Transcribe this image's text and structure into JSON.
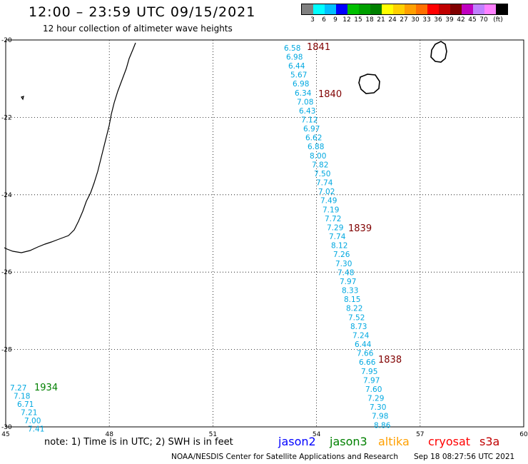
{
  "header": {
    "title": "12:00 – 23:59 UTC 09/15/2021",
    "subtitle": "12 hour collection of altimeter wave heights"
  },
  "legend": {
    "colors": [
      "#808080",
      "#00ffff",
      "#00bfff",
      "#0000ff",
      "#00c000",
      "#00a000",
      "#008000",
      "#ffff00",
      "#ffd000",
      "#ffa000",
      "#ff7000",
      "#ff0000",
      "#c00000",
      "#800000",
      "#c000c0",
      "#c080ff",
      "#ff80ff",
      "#000000"
    ],
    "labels": [
      "3",
      "6",
      "9",
      "12",
      "15",
      "18",
      "21",
      "24",
      "27",
      "30",
      "33",
      "36",
      "39",
      "42",
      "45",
      "70",
      "(ft)"
    ]
  },
  "map": {
    "lon_labels": [
      "45",
      "48",
      "51",
      "54",
      "57",
      "60"
    ],
    "lat_labels": [
      "-20",
      "-22",
      "-24",
      "-26",
      "-28",
      "-30"
    ],
    "wave_color": "#00a8e0",
    "time_color": "#800000",
    "jason3_color": "#008000",
    "track_main": [
      "6.58",
      "6.98",
      "6.44",
      "5.67",
      "6.98",
      "6.34",
      "7.08",
      "6.43",
      "7.12",
      "6.97",
      "6.62",
      "6.88",
      "8.00",
      "7.82",
      "7.50",
      "7.74",
      "7.02",
      "7.49",
      "7.19",
      "7.72",
      "7.29",
      "7.74",
      "8.12",
      "7.26",
      "7.30",
      "7.48",
      "7.97",
      "8.33",
      "8.15",
      "8.22",
      "7.52",
      "8.73",
      "7.24",
      "6.44",
      "7.66",
      "6.66",
      "7.95",
      "7.97",
      "7.60",
      "7.29",
      "7.30",
      "7.98",
      "8.86"
    ],
    "track_times": [
      "1841",
      "1840",
      "1839",
      "1838"
    ],
    "track_west": [
      "7.27",
      "7.18",
      "6.71",
      "7.21",
      "7.00",
      "7.41"
    ],
    "track_west_time": "1934"
  },
  "footer": {
    "note": "note: 1) Time is in UTC; 2) SWH is in feet",
    "satellites": [
      {
        "name": "jason2",
        "color": "#0000ff"
      },
      {
        "name": "jason3",
        "color": "#008000"
      },
      {
        "name": "altika",
        "color": "#ffa000"
      },
      {
        "name": "cryosat",
        "color": "#ff0000"
      },
      {
        "name": "s3a",
        "color": "#c00000"
      }
    ],
    "credit": "NOAA/NESDIS Center for Satellite Applications and Research",
    "timestamp": "Sep 18 08:27:56 UTC 2021"
  }
}
